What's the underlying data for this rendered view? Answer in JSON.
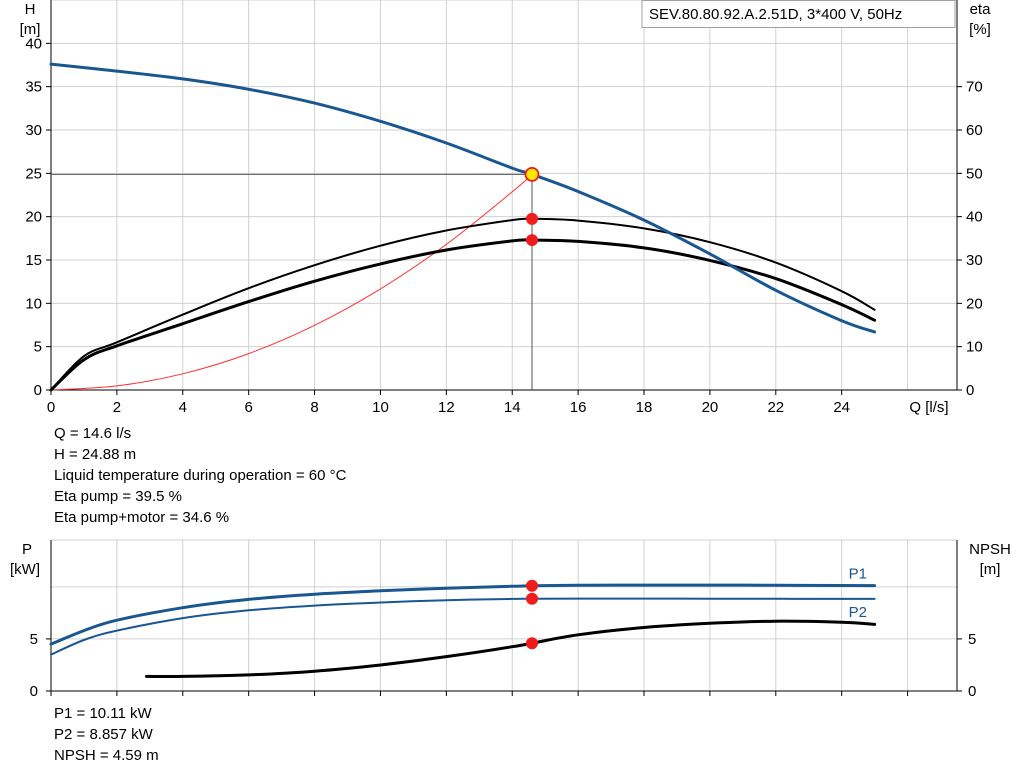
{
  "model_label": "SEV.80.80.92.A.2.51D, 3*400 V, 50Hz",
  "chart_data": [
    {
      "type": "line",
      "name": "pump-performance",
      "xlabel": "Q [l/s]",
      "ylabel": [
        "H",
        "[m]"
      ],
      "y2label": [
        "eta",
        "[%]"
      ],
      "xlim": [
        0,
        27.5
      ],
      "ylim": [
        0,
        45
      ],
      "y2lim": [
        0,
        90
      ],
      "xticks": [
        0,
        2,
        4,
        6,
        8,
        10,
        12,
        14,
        16,
        18,
        20,
        22,
        24
      ],
      "yticks": [
        0,
        5,
        10,
        15,
        20,
        25,
        30,
        35,
        40
      ],
      "y2ticks": [
        0,
        10,
        20,
        30,
        40,
        50,
        60,
        70
      ],
      "grid": true,
      "operating_point": {
        "x": 14.6,
        "y": 24.88
      },
      "markers_eta": [
        39.5,
        34.6
      ],
      "series": [
        {
          "key": "head",
          "axis": "left",
          "color": "#1a5790",
          "width": 3,
          "x": [
            0,
            2,
            4,
            6,
            8,
            10,
            12,
            14,
            14.6,
            16,
            18,
            20,
            22,
            24,
            25
          ],
          "y": [
            37.6,
            36.8,
            35.9,
            34.7,
            33.1,
            31.0,
            28.5,
            25.6,
            24.88,
            22.9,
            19.6,
            15.7,
            11.5,
            8.0,
            6.7
          ]
        },
        {
          "key": "system",
          "axis": "left",
          "color": "#ff3030",
          "width": 1,
          "x": [
            0,
            2,
            4,
            6,
            8,
            10,
            12,
            14,
            14.6
          ],
          "y": [
            0,
            0.47,
            1.87,
            4.2,
            7.47,
            11.67,
            16.8,
            22.87,
            24.88
          ]
        },
        {
          "key": "eta-pump",
          "axis": "right",
          "color": "#000000",
          "width": 2,
          "x": [
            0,
            1,
            2,
            4,
            6,
            8,
            10,
            12,
            14,
            14.6,
            16,
            18,
            20,
            22,
            24,
            25
          ],
          "y": [
            0,
            7.8,
            11.0,
            17.4,
            23.5,
            28.8,
            33.3,
            36.8,
            39.2,
            39.5,
            39.1,
            37.3,
            34.1,
            29.4,
            22.8,
            18.5
          ]
        },
        {
          "key": "eta-total",
          "axis": "right",
          "color": "#000000",
          "width": 3,
          "x": [
            0,
            1,
            2,
            4,
            6,
            8,
            10,
            12,
            14,
            14.6,
            16,
            18,
            20,
            22,
            24,
            25
          ],
          "y": [
            0,
            7.0,
            10.2,
            15.3,
            20.4,
            25.1,
            29.1,
            32.3,
            34.4,
            34.6,
            34.3,
            32.8,
            29.9,
            25.7,
            19.7,
            16.1
          ]
        }
      ]
    },
    {
      "type": "line",
      "name": "power-npsh",
      "xlim": [
        0,
        27.5
      ],
      "ylabel": [
        "P",
        "[kW]"
      ],
      "y2label": [
        "NPSH",
        "[m]"
      ],
      "ylim": [
        0,
        14.5
      ],
      "y2lim": [
        0,
        14.5
      ],
      "yticks": [
        0,
        5
      ],
      "y2ticks": [
        0,
        5
      ],
      "grid": true,
      "series": [
        {
          "key": "p1",
          "name": "P1",
          "axis": "left",
          "color": "#1a5790",
          "width": 3,
          "x": [
            0,
            1,
            2,
            4,
            6,
            8,
            10,
            12,
            14,
            14.6,
            16,
            18,
            20,
            22,
            24,
            25
          ],
          "y": [
            4.5,
            5.8,
            6.8,
            8.0,
            8.8,
            9.3,
            9.62,
            9.87,
            10.05,
            10.11,
            10.15,
            10.17,
            10.17,
            10.15,
            10.13,
            10.12
          ]
        },
        {
          "key": "p2",
          "name": "P2",
          "axis": "left",
          "color": "#1a5790",
          "width": 2,
          "x": [
            0,
            1,
            2,
            4,
            6,
            8,
            10,
            12,
            14,
            14.6,
            16,
            18,
            20,
            22,
            24,
            25
          ],
          "y": [
            3.5,
            4.9,
            5.8,
            7.0,
            7.75,
            8.2,
            8.5,
            8.72,
            8.84,
            8.857,
            8.87,
            8.87,
            8.86,
            8.85,
            8.84,
            8.84
          ]
        },
        {
          "key": "npsh",
          "axis": "right",
          "color": "#000000",
          "width": 3,
          "x": [
            2.9,
            4,
            6,
            8,
            10,
            12,
            14,
            14.6,
            16,
            18,
            20,
            22,
            24,
            25
          ],
          "y": [
            1.4,
            1.4,
            1.55,
            1.9,
            2.5,
            3.3,
            4.25,
            4.59,
            5.4,
            6.1,
            6.5,
            6.7,
            6.6,
            6.4
          ]
        }
      ]
    }
  ],
  "info_top": [
    "Q = 14.6 l/s",
    "H = 24.88 m",
    "Liquid temperature during operation = 60 °C",
    "Eta pump = 39.5 %",
    "Eta pump+motor = 34.6 %"
  ],
  "info_bottom": [
    "P1 = 10.11 kW",
    "P2 = 8.857 kW",
    "NPSH = 4.59 m"
  ]
}
